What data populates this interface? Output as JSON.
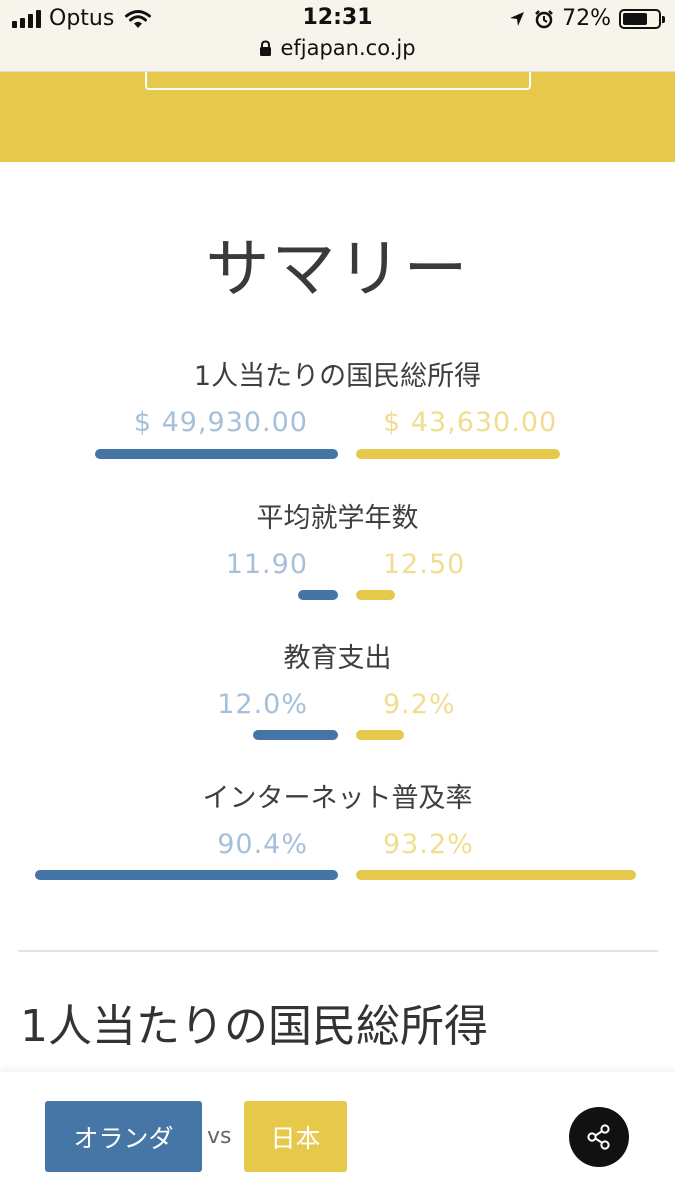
{
  "status_bar": {
    "carrier": "Optus",
    "time": "12:31",
    "battery": "72%",
    "battery_level": 0.72,
    "url": "efjapan.co.jp"
  },
  "summary": {
    "title": "サマリー",
    "metrics": [
      {
        "label": "1人当たりの国民総所得",
        "left_value": "$ 49,930.00",
        "right_value": "$ 43,630.00"
      },
      {
        "label": "平均就学年数",
        "left_value": "11.90",
        "right_value": "12.50"
      },
      {
        "label": "教育支出",
        "left_value": "12.0%",
        "right_value": "9.2%"
      },
      {
        "label": "インターネット普及率",
        "left_value": "90.4%",
        "right_value": "93.2%"
      }
    ]
  },
  "section_title": "1人当たりの国民総所得",
  "compare": {
    "left_country": "オランダ",
    "vs_label": "vs",
    "right_country": "日本"
  },
  "icons": {
    "signal": "signal-bars-icon",
    "wifi": "wifi-icon",
    "location": "location-arrow-icon",
    "alarm": "alarm-clock-icon",
    "battery": "battery-icon",
    "lock": "lock-icon",
    "share": "share-icon"
  },
  "colors": {
    "country_left": "#4574a6",
    "country_right": "#e6c84a",
    "value_left": "#a6c0da",
    "value_right": "#f0dd8f"
  }
}
